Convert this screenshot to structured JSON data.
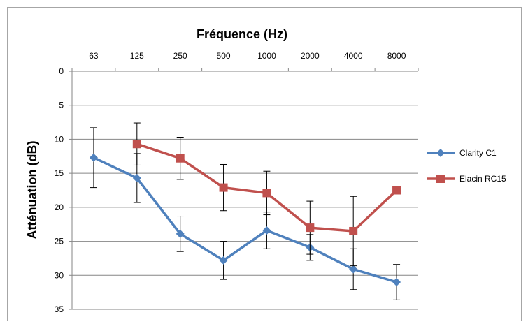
{
  "chart_data": {
    "type": "line",
    "title": "",
    "xlabel": "Fréquence (Hz)",
    "ylabel": "Atténuation (dB)",
    "categories": [
      "63",
      "125",
      "250",
      "500",
      "1000",
      "2000",
      "4000",
      "8000"
    ],
    "ylim": [
      0,
      35
    ],
    "y_inverted": true,
    "yticks": [
      "0",
      "5",
      "10",
      "15",
      "20",
      "25",
      "30",
      "35"
    ],
    "x_axis_position": "top",
    "grid": "horizontal",
    "legend_position": "right",
    "series": [
      {
        "name": "Clarity C1",
        "color": "#4F81BD",
        "marker": "diamond",
        "values": [
          12.7,
          15.7,
          23.9,
          27.8,
          23.4,
          25.9,
          29.1,
          31.0
        ],
        "error": [
          4.4,
          3.6,
          2.6,
          2.8,
          2.7,
          1.9,
          3.0,
          2.6
        ]
      },
      {
        "name": "Elacin RC15",
        "color": "#C0504D",
        "marker": "square",
        "values": [
          null,
          10.7,
          12.8,
          17.1,
          17.9,
          23.0,
          23.5,
          17.5
        ],
        "error": [
          null,
          3.1,
          3.1,
          3.4,
          3.2,
          3.9,
          5.1,
          null
        ]
      }
    ]
  }
}
